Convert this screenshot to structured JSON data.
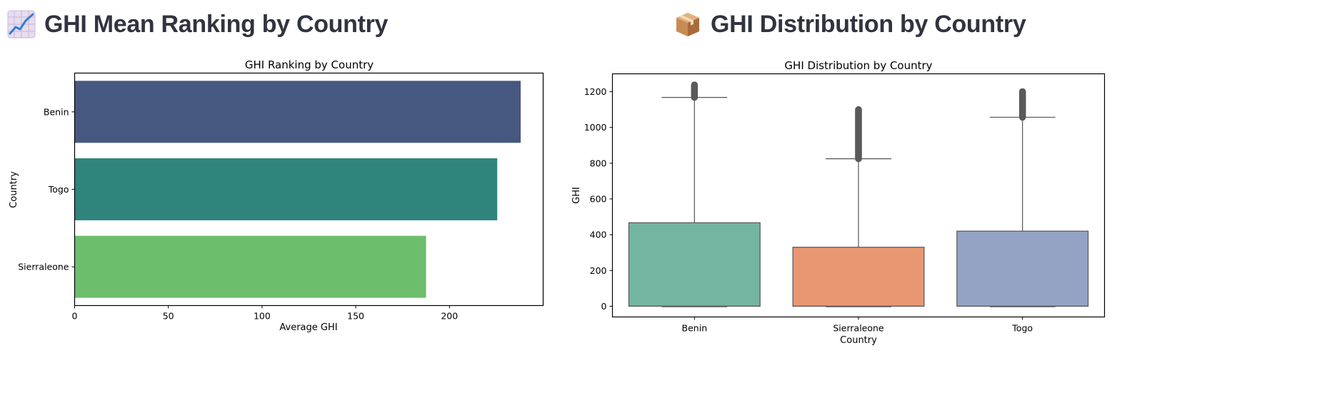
{
  "sections": [
    {
      "heading": "GHI Mean Ranking by Country",
      "icon": "chart-increasing-icon"
    },
    {
      "heading": "GHI Distribution by Country",
      "icon": "package-box-icon"
    }
  ],
  "chart_data": [
    {
      "type": "bar",
      "orientation": "horizontal",
      "title": "GHI Ranking by Country",
      "xlabel": "Average GHI",
      "ylabel": "Country",
      "categories": [
        "Benin",
        "Togo",
        "Sierraleone"
      ],
      "values": [
        238,
        225.5,
        187.5
      ],
      "xlim": [
        0,
        250
      ],
      "xticks": [
        0,
        50,
        100,
        150,
        200
      ],
      "colors": [
        "#46587f",
        "#2f847c",
        "#6cbe6d"
      ],
      "grid": false
    },
    {
      "type": "box",
      "title": "GHI Distribution by Country",
      "xlabel": "Country",
      "ylabel": "GHI",
      "categories": [
        "Benin",
        "Sierraleone",
        "Togo"
      ],
      "boxes": [
        {
          "min": -3,
          "q1": 0,
          "median": 0,
          "q3": 467,
          "whisker_high": 1168,
          "outliers_range": [
            1168,
            1238
          ],
          "color": "#73b5a0"
        },
        {
          "min": -3,
          "q1": 0,
          "median": 0,
          "q3": 330,
          "whisker_high": 825,
          "outliers_range": [
            825,
            1100
          ],
          "color": "#e99673"
        },
        {
          "min": -3,
          "q1": 0,
          "median": 0,
          "q3": 420,
          "whisker_high": 1057,
          "outliers_range": [
            1057,
            1200
          ],
          "color": "#94a3c4"
        }
      ],
      "ylim": [
        -60,
        1300
      ],
      "yticks": [
        0,
        200,
        400,
        600,
        800,
        1000,
        1200
      ],
      "grid": false
    }
  ]
}
